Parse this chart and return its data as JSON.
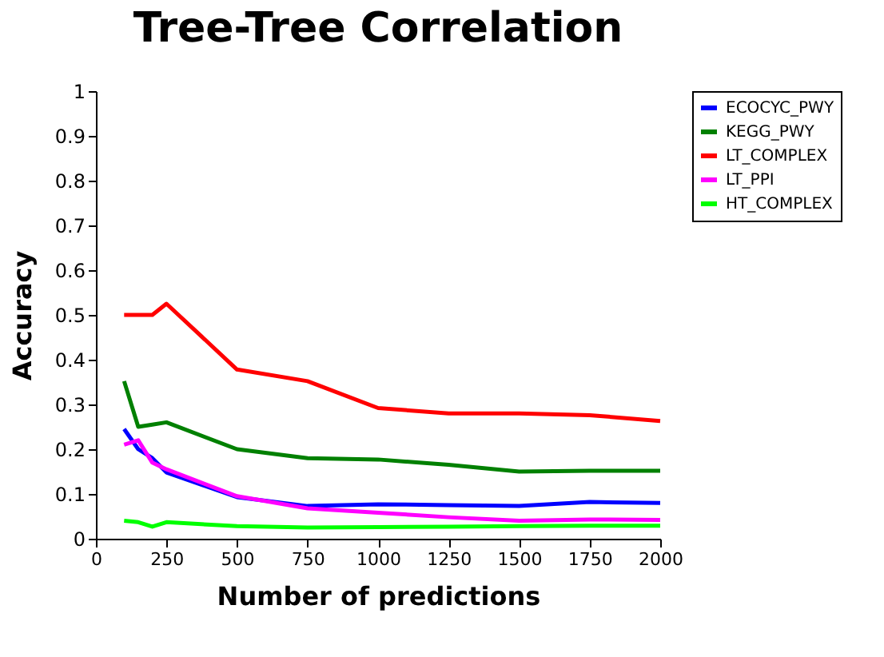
{
  "chart_data": {
    "type": "line",
    "title": "Tree-Tree Correlation",
    "xlabel": "Number of predictions",
    "ylabel": "Accuracy",
    "x": [
      100,
      150,
      200,
      250,
      500,
      750,
      1000,
      1250,
      1500,
      1750,
      2000
    ],
    "series": [
      {
        "name": "ECOCYC_PWY",
        "color": "#0000ff",
        "values": [
          0.245,
          0.2,
          0.18,
          0.148,
          0.093,
          0.073,
          0.077,
          0.075,
          0.073,
          0.082,
          0.08
        ]
      },
      {
        "name": "KEGG_PWY",
        "color": "#008000",
        "values": [
          0.352,
          0.25,
          0.255,
          0.26,
          0.2,
          0.18,
          0.177,
          0.165,
          0.15,
          0.152,
          0.152
        ]
      },
      {
        "name": "LT_COMPLEX",
        "color": "#ff0000",
        "values": [
          0.5,
          0.5,
          0.5,
          0.525,
          0.378,
          0.352,
          0.292,
          0.28,
          0.28,
          0.276,
          0.263
        ]
      },
      {
        "name": "LT_PPI",
        "color": "#ff00ff",
        "values": [
          0.21,
          0.22,
          0.17,
          0.155,
          0.095,
          0.068,
          0.058,
          0.048,
          0.04,
          0.043,
          0.042
        ]
      },
      {
        "name": "HT_COMPLEX",
        "color": "#00ff00",
        "values": [
          0.04,
          0.037,
          0.027,
          0.037,
          0.028,
          0.025,
          0.026,
          0.027,
          0.028,
          0.029,
          0.029
        ]
      }
    ],
    "xlim": [
      0,
      2000
    ],
    "xticks": [
      0,
      250,
      500,
      750,
      1000,
      1250,
      1500,
      1750,
      2000
    ],
    "ylim": [
      0,
      1
    ],
    "yticks": [
      0,
      0.1,
      0.2,
      0.3,
      0.4,
      0.5,
      0.6,
      0.7,
      0.8,
      0.9,
      1
    ],
    "grid": false,
    "legend": "right",
    "marker": "none",
    "line_style": "solid"
  }
}
